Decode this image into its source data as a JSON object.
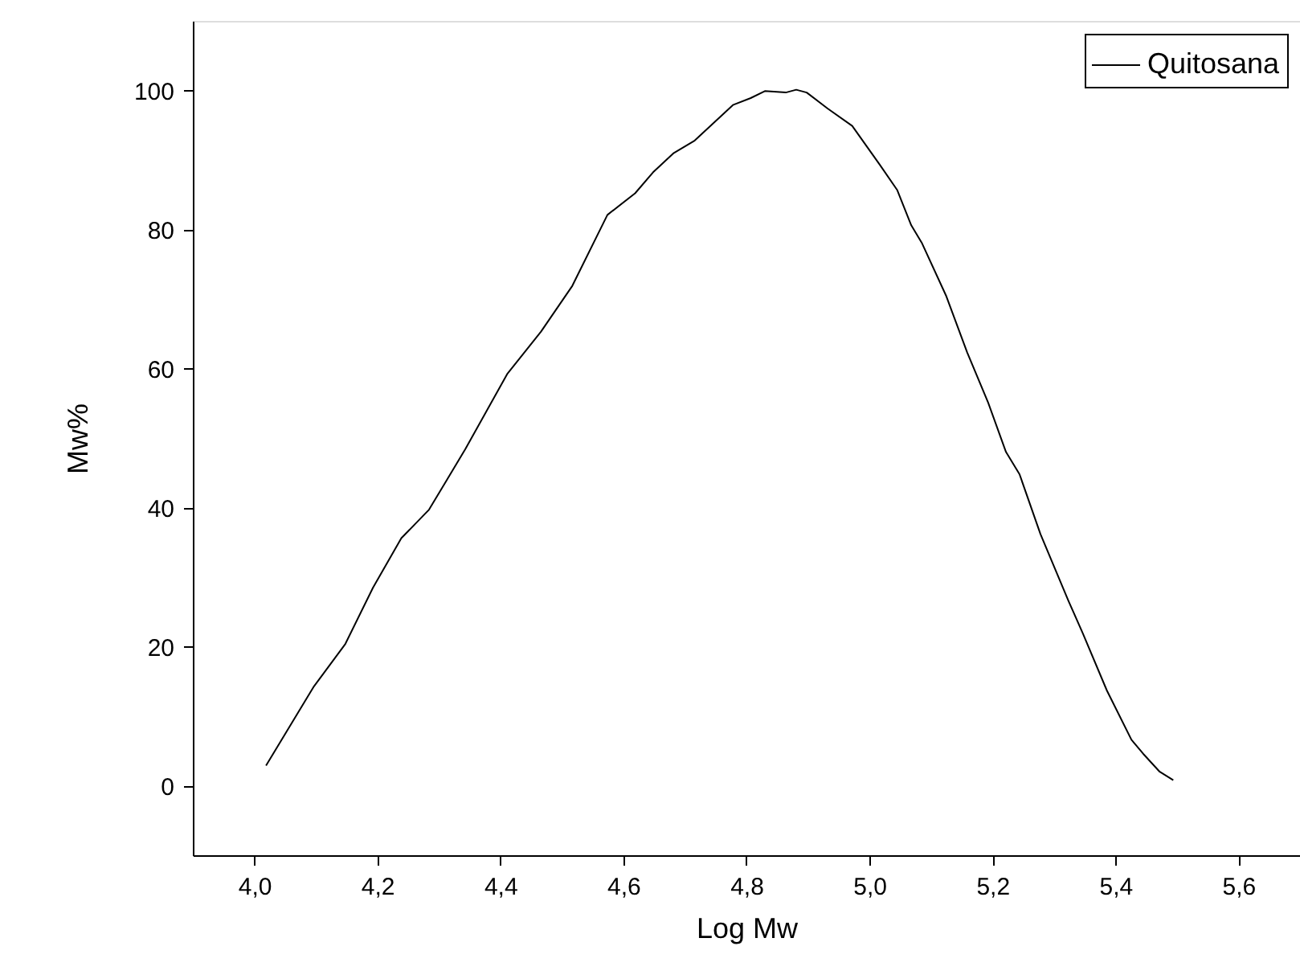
{
  "chart_data": {
    "type": "line",
    "xlabel": "Log Mw",
    "ylabel": "Mw%",
    "x": [
      4.019,
      4.097,
      4.148,
      4.193,
      4.239,
      4.284,
      4.3125,
      4.343,
      4.411,
      4.466,
      4.517,
      4.574,
      4.619,
      4.648,
      4.682,
      4.716,
      4.778,
      4.807,
      4.83,
      4.864,
      4.881,
      4.898,
      4.932,
      4.972,
      5.017,
      5.045,
      5.068,
      5.085,
      5.125,
      5.159,
      5.193,
      5.222,
      5.244,
      5.278,
      5.324,
      5.347,
      5.386,
      5.426,
      5.445,
      5.472,
      5.494
    ],
    "series": [
      {
        "name": "Quitosana",
        "color": "#000000",
        "values": [
          2.9,
          14.3,
          20.4,
          28.5,
          35.6,
          39.7,
          43.9,
          48.4,
          59.2,
          65.3,
          71.9,
          82.1,
          85.2,
          88.2,
          91.0,
          92.8,
          97.9,
          98.9,
          99.9,
          99.7,
          100.1,
          99.7,
          97.4,
          94.9,
          89.3,
          85.7,
          80.6,
          78.1,
          70.4,
          62.3,
          55.1,
          48.0,
          44.8,
          36.2,
          26.5,
          21.9,
          13.7,
          6.6,
          4.6,
          2.0,
          0.8
        ]
      }
    ],
    "xlim": [
      3.9,
      5.7
    ],
    "xticks": [
      {
        "value": 4.0,
        "label": "4,0"
      },
      {
        "value": 4.2,
        "label": "4,2"
      },
      {
        "value": 4.4,
        "label": "4,4"
      },
      {
        "value": 4.6,
        "label": "4,6"
      },
      {
        "value": 4.8,
        "label": "4,8"
      },
      {
        "value": 5.0,
        "label": "5,0"
      },
      {
        "value": 5.2,
        "label": "5,2"
      },
      {
        "value": 5.4,
        "label": "5,4"
      },
      {
        "value": 5.6,
        "label": "5,6"
      }
    ],
    "ylim": [
      -10,
      110
    ],
    "yticks": [
      0,
      20,
      40,
      60,
      80,
      100
    ],
    "legend": "top right",
    "grid": false,
    "marker": "none",
    "line_style": "solid"
  }
}
